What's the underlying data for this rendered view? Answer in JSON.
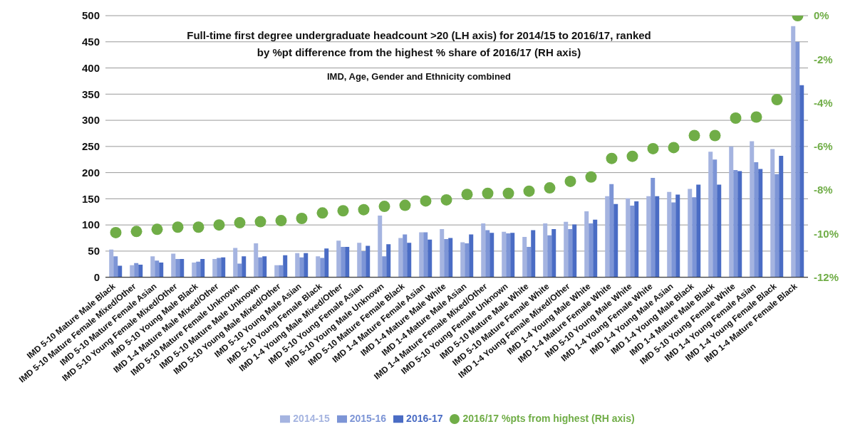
{
  "chart_data": {
    "type": "bar",
    "title": "Full-time first degree undergraduate headcount >20 (LH axis) for 2014/15 to 2016/17, ranked by %pt difference from the highest % share of 2016/17 (RH axis)",
    "subtitle": "IMD, Age, Gender and Ethnicity combined",
    "categories": [
      "IMD 5-10 Mature Male Black",
      "IMD 5-10 Mature Female Mixed/Other",
      "IMD 5-10 Mature Female Asian",
      "IMD 5-10 Young Female Mixed/Other",
      "IMD 5-10 Young Male Black",
      "IMD 1-4 Mature Male Mixed/Other",
      "IMD 5-10 Mature Female Unknown",
      "IMD 5-10 Mature Male Unknown",
      "IMD 5-10 Young Male Mixed/Other",
      "IMD 5-10 Young Male Asian",
      "IMD 5-10 Young Female Black",
      "IMD 1-4 Young Male Mixed/Other",
      "IMD 5-10 Young Female Asian",
      "IMD 5-10 Young Male Unknown",
      "IMD 5-10 Mature Female Black",
      "IMD 1-4 Mature Female Asian",
      "IMD 1-4 Mature Male White",
      "IMD 1-4 Mature Male Asian",
      "IMD 1-4 Mature Female Mixed/Other",
      "IMD 5-10 Young Female Unknown",
      "IMD 5-10 Mature Male White",
      "IMD 5-10 Mature Female White",
      "IMD 1-4 Young Female Mixed/Other",
      "IMD 1-4 Young Male White",
      "IMD 1-4 Mature Female White",
      "IMD 5-10 Young Male White",
      "IMD 1-4 Young Female White",
      "IMD 1-4 Young Male Asian",
      "IMD 1-4 Young Male Black",
      "IMD 1-4 Mature Male Black",
      "IMD 5-10 Young Female White",
      "IMD 1-4 Young Female Asian",
      "IMD 1-4 Young Female Black",
      "IMD 1-4 Mature Female Black"
    ],
    "series": [
      {
        "name": "2014-15",
        "color": "#a5b4e0",
        "values": [
          53,
          23,
          40,
          45,
          28,
          35,
          56,
          65,
          23,
          46,
          40,
          70,
          66,
          118,
          75,
          86,
          92,
          67,
          103,
          87,
          77,
          103,
          106,
          126,
          155,
          151,
          155,
          163,
          169,
          240,
          250,
          260,
          245,
          480
        ]
      },
      {
        "name": "2015-16",
        "color": "#7d95d6",
        "values": [
          40,
          27,
          32,
          35,
          30,
          37,
          26,
          38,
          23,
          38,
          37,
          58,
          50,
          40,
          82,
          86,
          73,
          65,
          90,
          84,
          58,
          80,
          92,
          103,
          178,
          137,
          190,
          143,
          153,
          225,
          205,
          220,
          197,
          450
        ]
      },
      {
        "name": "2016-17",
        "color": "#4a6cc4",
        "values": [
          22,
          24,
          28,
          35,
          35,
          38,
          40,
          40,
          42,
          46,
          55,
          58,
          60,
          63,
          66,
          72,
          75,
          82,
          85,
          85,
          90,
          92,
          101,
          110,
          140,
          145,
          155,
          158,
          177,
          177,
          203,
          207,
          232,
          367
        ]
      },
      {
        "name": "2016/17 %pts from highest (RH axis)",
        "type": "scatter",
        "axis": "y2",
        "color": "#70ad47",
        "values": [
          -9.95,
          -9.9,
          -9.8,
          -9.7,
          -9.7,
          -9.6,
          -9.5,
          -9.45,
          -9.4,
          -9.3,
          -9.05,
          -8.95,
          -8.9,
          -8.75,
          -8.7,
          -8.5,
          -8.45,
          -8.2,
          -8.15,
          -8.15,
          -8.05,
          -7.9,
          -7.6,
          -7.4,
          -6.55,
          -6.45,
          -6.1,
          -6.05,
          -5.5,
          -5.5,
          -4.7,
          -4.65,
          -3.85,
          0
        ]
      }
    ],
    "ylim": [
      0,
      500
    ],
    "yticks": [
      0,
      50,
      100,
      150,
      200,
      250,
      300,
      350,
      400,
      450,
      500
    ],
    "y2lim": [
      -12,
      0
    ],
    "y2ticks": [
      {
        "value": -12,
        "label": "-12%"
      },
      {
        "value": -10,
        "label": "-10%"
      },
      {
        "value": -8,
        "label": "-8%"
      },
      {
        "value": -6,
        "label": "-6%"
      },
      {
        "value": -4,
        "label": "-4%"
      },
      {
        "value": -2,
        "label": "-2%"
      },
      {
        "value": 0,
        "label": "0%"
      }
    ],
    "grid": "y",
    "legend": "bottom",
    "marker": "circle"
  }
}
